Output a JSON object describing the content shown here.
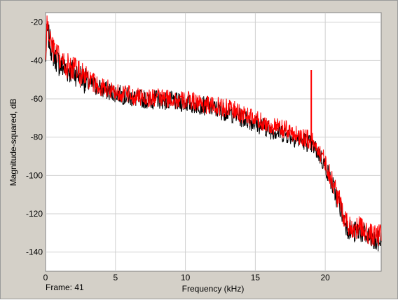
{
  "footer": {
    "frame_label": "Frame: 41"
  },
  "chart_data": {
    "type": "line",
    "title": "",
    "xlabel": "Frequency (kHz)",
    "ylabel": "Magnitude-squared, dB",
    "xlim": [
      0,
      24
    ],
    "ylim": [
      -150,
      -15
    ],
    "x_ticks": [
      0,
      5,
      10,
      15,
      20
    ],
    "y_ticks": [
      -20,
      -40,
      -60,
      -80,
      -100,
      -120,
      -140
    ],
    "x_tick_labels": [
      "0",
      "5",
      "10",
      "15",
      "20"
    ],
    "y_tick_labels": [
      "-20",
      "-40",
      "-60",
      "-80",
      "-100",
      "-120",
      "-140"
    ],
    "grid": true,
    "series": [
      {
        "color": "#000000",
        "x": [
          0,
          0.1,
          0.5,
          1,
          1.5,
          2,
          2.5,
          3,
          3.5,
          4,
          4.5,
          5,
          5.5,
          6,
          6.5,
          7,
          7.5,
          8,
          8.5,
          9,
          9.5,
          10,
          10.5,
          11,
          11.5,
          12,
          12.5,
          13,
          13.5,
          14,
          14.5,
          15,
          15.5,
          16,
          16.5,
          17,
          17.5,
          18,
          18.5,
          19,
          19.5,
          20,
          20.5,
          21,
          21.3,
          21.6,
          22,
          22.5,
          23,
          23.5,
          24
        ],
        "y": [
          -42,
          -24,
          -36,
          -42,
          -45,
          -46,
          -48,
          -52,
          -53,
          -55,
          -56,
          -57,
          -58,
          -59,
          -60,
          -60,
          -61,
          -60,
          -61,
          -61,
          -62,
          -62,
          -63,
          -63,
          -64,
          -65,
          -66,
          -67,
          -68,
          -70,
          -71,
          -73,
          -74,
          -76,
          -77,
          -78,
          -79,
          -81,
          -82,
          -84,
          -88,
          -95,
          -105,
          -115,
          -122,
          -127,
          -130,
          -129,
          -132,
          -135,
          -134
        ]
      },
      {
        "color": "#ff0000",
        "x": [
          0,
          0.1,
          0.5,
          1,
          1.5,
          2,
          2.5,
          3,
          3.5,
          4,
          4.5,
          5,
          5.5,
          6,
          6.5,
          7,
          7.5,
          8,
          8.5,
          9,
          9.5,
          10,
          10.5,
          11,
          11.5,
          12,
          12.5,
          13,
          13.5,
          14,
          14.5,
          15,
          15.5,
          16,
          16.5,
          17,
          17.5,
          18,
          18.5,
          19,
          19.5,
          20,
          20.5,
          21,
          21.3,
          21.6,
          22,
          22.5,
          23,
          23.5,
          24
        ],
        "y": [
          -40,
          -22,
          -34,
          -40,
          -43,
          -44,
          -47,
          -50,
          -52,
          -54,
          -55,
          -56,
          -57,
          -58,
          -59,
          -59,
          -60,
          -59,
          -60,
          -60,
          -61,
          -61,
          -61,
          -62,
          -63,
          -64,
          -64,
          -65,
          -66,
          -68,
          -69,
          -71,
          -72,
          -74,
          -75,
          -76,
          -77,
          -79,
          -80,
          -82,
          -86,
          -93,
          -103,
          -113,
          -120,
          -125,
          -128,
          -127,
          -130,
          -132,
          -131
        ]
      }
    ],
    "annotations": [
      {
        "type": "spike",
        "series": 1,
        "x": 19,
        "y_from": -81,
        "y_to": -45
      }
    ]
  }
}
